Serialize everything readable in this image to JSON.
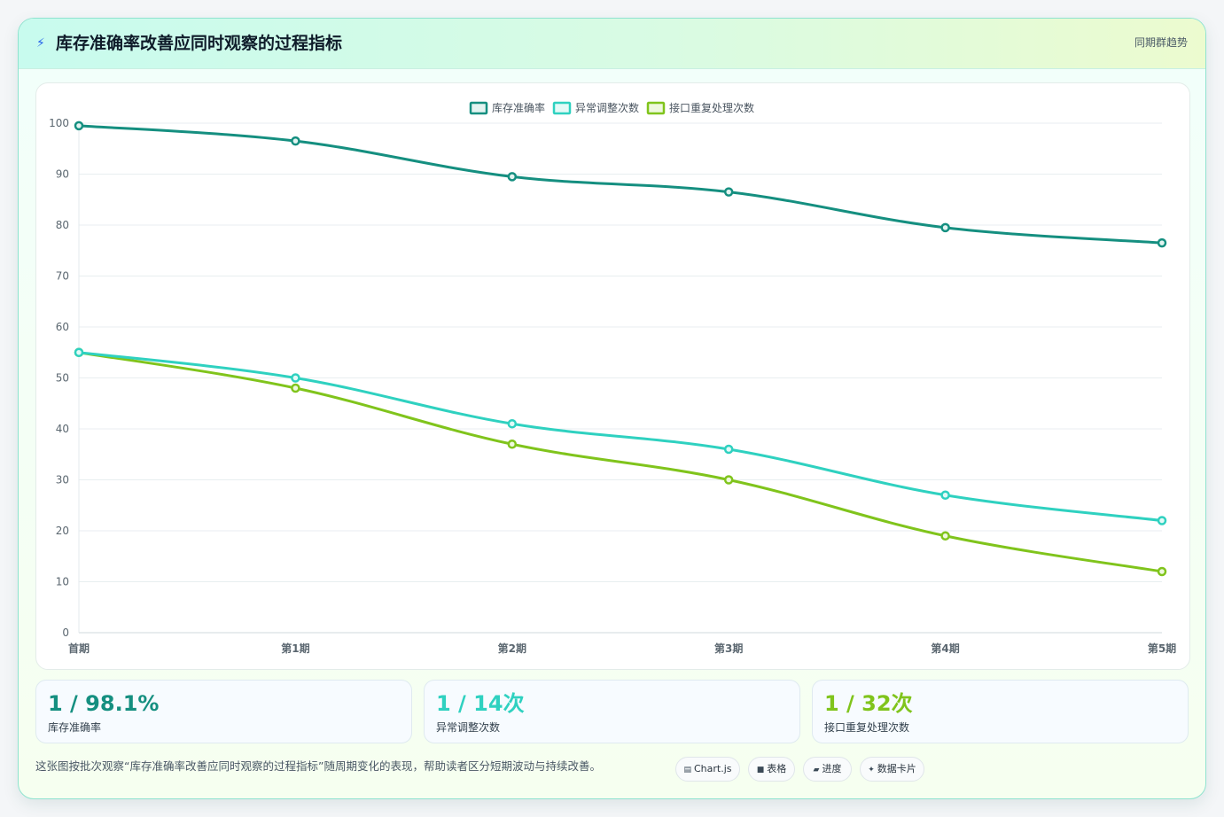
{
  "header": {
    "icon": "lightning-icon",
    "title": "库存准确率改善应同时观察的过程指标",
    "tag": "同期群趋势"
  },
  "colors": {
    "accuracy": "#158f80",
    "anomaly": "#2fd1c0",
    "reprocess": "#80c41c"
  },
  "chart_data": {
    "type": "line",
    "categories": [
      "首期",
      "第1期",
      "第2期",
      "第3期",
      "第4期",
      "第5期"
    ],
    "series": [
      {
        "name": "库存准确率",
        "values": [
          99.5,
          96.5,
          89.5,
          86.5,
          79.5,
          76.5
        ]
      },
      {
        "name": "异常调整次数",
        "values": [
          55,
          50,
          41,
          36,
          27,
          22
        ]
      },
      {
        "name": "接口重复处理次数",
        "values": [
          55,
          48,
          37,
          30,
          19,
          12
        ]
      }
    ],
    "ylim": [
      0,
      100
    ],
    "yticks": [
      0,
      10,
      20,
      30,
      40,
      50,
      60,
      70,
      80,
      90,
      100
    ],
    "grid": true,
    "legend": "top-center"
  },
  "stats": [
    {
      "value": "1 / 98.1%",
      "label": "库存准确率"
    },
    {
      "value": "1 / 14次",
      "label": "异常调整次数"
    },
    {
      "value": "1 / 32次",
      "label": "接口重复处理次数"
    }
  ],
  "footer": {
    "note": "这张图按批次观察“库存准确率改善应同时观察的过程指标”随周期变化的表现，帮助读者区分短期波动与持续改善。"
  },
  "chips": [
    {
      "icon": "chart-icon",
      "label": "Chart.js"
    },
    {
      "icon": "table-icon",
      "label": "表格"
    },
    {
      "icon": "progress-icon",
      "label": "进度"
    },
    {
      "icon": "sparkle-icon",
      "label": "数据卡片"
    }
  ]
}
